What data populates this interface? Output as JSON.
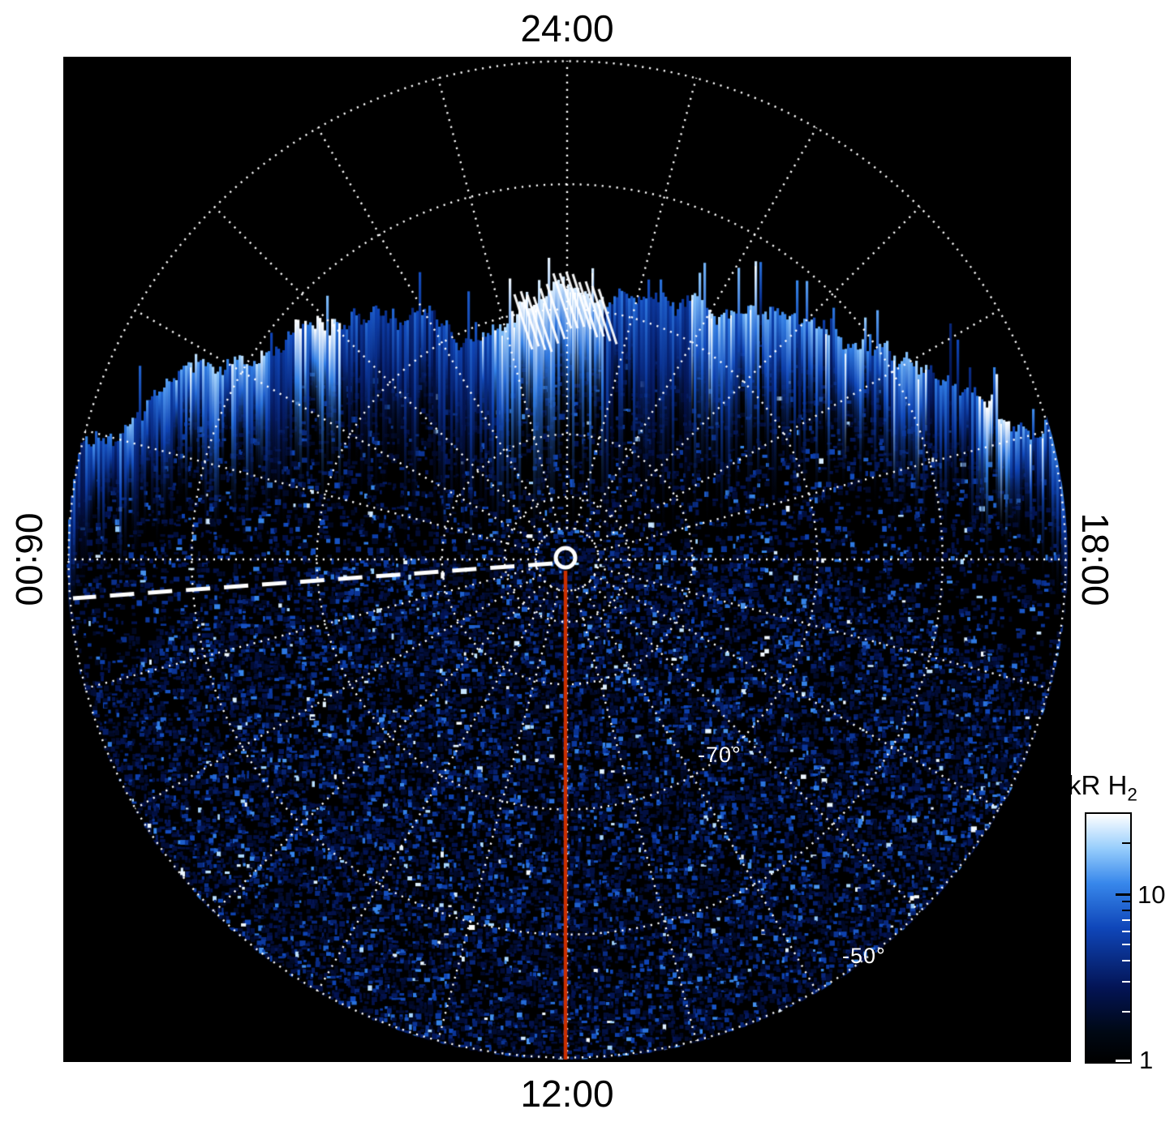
{
  "labels": {
    "top": "24:00",
    "bottom": "12:00",
    "left": "06:00",
    "right": "18:00",
    "lat_inner": "-70°",
    "lat_outer": "-50°"
  },
  "colorbar": {
    "title_text": "kR H",
    "title_sub": "2",
    "tick_upper": "10",
    "tick_lower": "1"
  },
  "chart_data": {
    "type": "heatmap",
    "projection": "south-polar projection, pole at center, local time around rim",
    "title": "",
    "local_time_labels": [
      {
        "position": "top",
        "label": "24:00"
      },
      {
        "position": "left",
        "label": "06:00"
      },
      {
        "position": "bottom",
        "label": "12:00"
      },
      {
        "position": "right",
        "label": "18:00"
      }
    ],
    "meridian_step_hours": 1,
    "latitude_circles_deg": [
      -50,
      -60,
      -70,
      -80,
      -85,
      -87.5
    ],
    "labeled_latitude_circles": [
      {
        "deg": -70,
        "label": "-70°"
      },
      {
        "deg": -50,
        "label": "-50°"
      }
    ],
    "grid_color": "#ffffff",
    "background_color": "#000000",
    "colorbar": {
      "title": "kR H2",
      "scale": "log",
      "min": 1,
      "max": 30,
      "major_ticks": [
        1,
        10
      ],
      "minor_ticks": [
        2,
        3,
        4,
        5,
        6,
        7,
        8,
        9,
        20
      ]
    },
    "auroral_band": {
      "description": "Bright vertically-striated H2 auroral emission band across the upper half of the disc; black (no data) poleward of the band's jagged top edge; faint blue speckle noise of ~1 kR fills the rest of the disc.",
      "band_extent_by_local_time": [
        {
          "lt": "06:00",
          "lat_range_deg": [
            -56,
            -50
          ]
        },
        {
          "lt": "03:00",
          "lat_range_deg": [
            -64,
            -55
          ]
        },
        {
          "lt": "24:00",
          "lat_range_deg": [
            -82,
            -69
          ]
        },
        {
          "lt": "21:00",
          "lat_range_deg": [
            -66,
            -56
          ]
        },
        {
          "lt": "18:00",
          "lat_range_deg": [
            -57,
            -50
          ]
        }
      ],
      "peak_brightness_kR": 30,
      "background_noise_kR": 1
    },
    "overlays": {
      "noon_meridian_line": {
        "color": "#cc2f00",
        "at_local_time": "12:00",
        "from": "pole",
        "to": "-50° edge"
      },
      "dawn_dashed_line": {
        "color": "#ffffff",
        "style": "long-dash",
        "from": "pole",
        "toward": "06:00, slightly below the 06:00-18:00 axis"
      },
      "pole_marker": {
        "color": "#ffffff",
        "shape": "open circle"
      }
    }
  }
}
